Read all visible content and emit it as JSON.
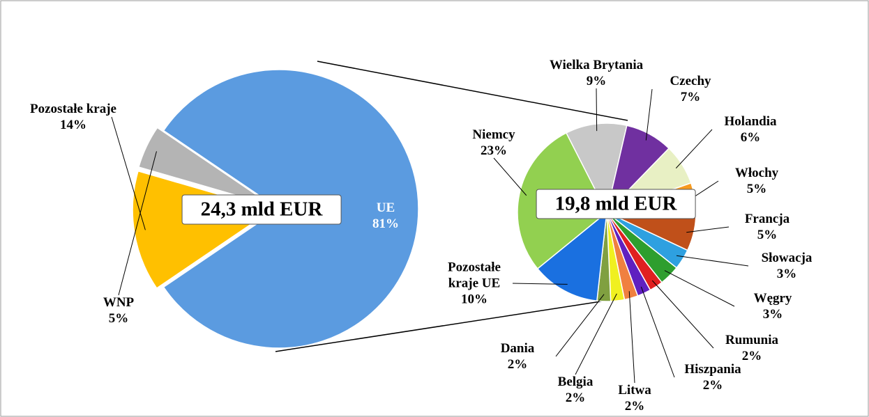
{
  "chart_data": [
    {
      "type": "pie",
      "center_label": "24,3 mld EUR",
      "categories": [
        "UE",
        "Pozostałe kraje",
        "WNP"
      ],
      "values": [
        81,
        14,
        5
      ],
      "value_labels": [
        "81%",
        "14%",
        "5%"
      ],
      "colors": [
        "#5b9be0",
        "#ffc000",
        "#b4b4b4"
      ]
    },
    {
      "type": "pie",
      "center_label": "19,8 mld EUR",
      "categories": [
        "Wielka Brytania",
        "Czechy",
        "Holandia",
        "Włochy",
        "Francja",
        "Słowacja",
        "Węgry",
        "Rumunia",
        "Hiszpania",
        "Litwa",
        "Belgia",
        "Dania",
        "Pozostałe kraje UE",
        "Niemcy"
      ],
      "values": [
        9,
        7,
        6,
        5,
        5,
        3,
        3,
        2,
        2,
        2,
        2,
        2,
        10,
        23
      ],
      "value_labels": [
        "9%",
        "7%",
        "6%",
        "5%",
        "5%",
        "3%",
        "3%",
        "2%",
        "2%",
        "2%",
        "2%",
        "2%",
        "10%",
        "23%"
      ],
      "colors": [
        "#c8c8c8",
        "#7030a0",
        "#e8f0c4",
        "#f79a1e",
        "#c0501a",
        "#2ea0e0",
        "#2e9e2e",
        "#e02020",
        "#6020c0",
        "#f08040",
        "#f0f020",
        "#80a040",
        "#1a70e0",
        "#92d050"
      ]
    }
  ]
}
